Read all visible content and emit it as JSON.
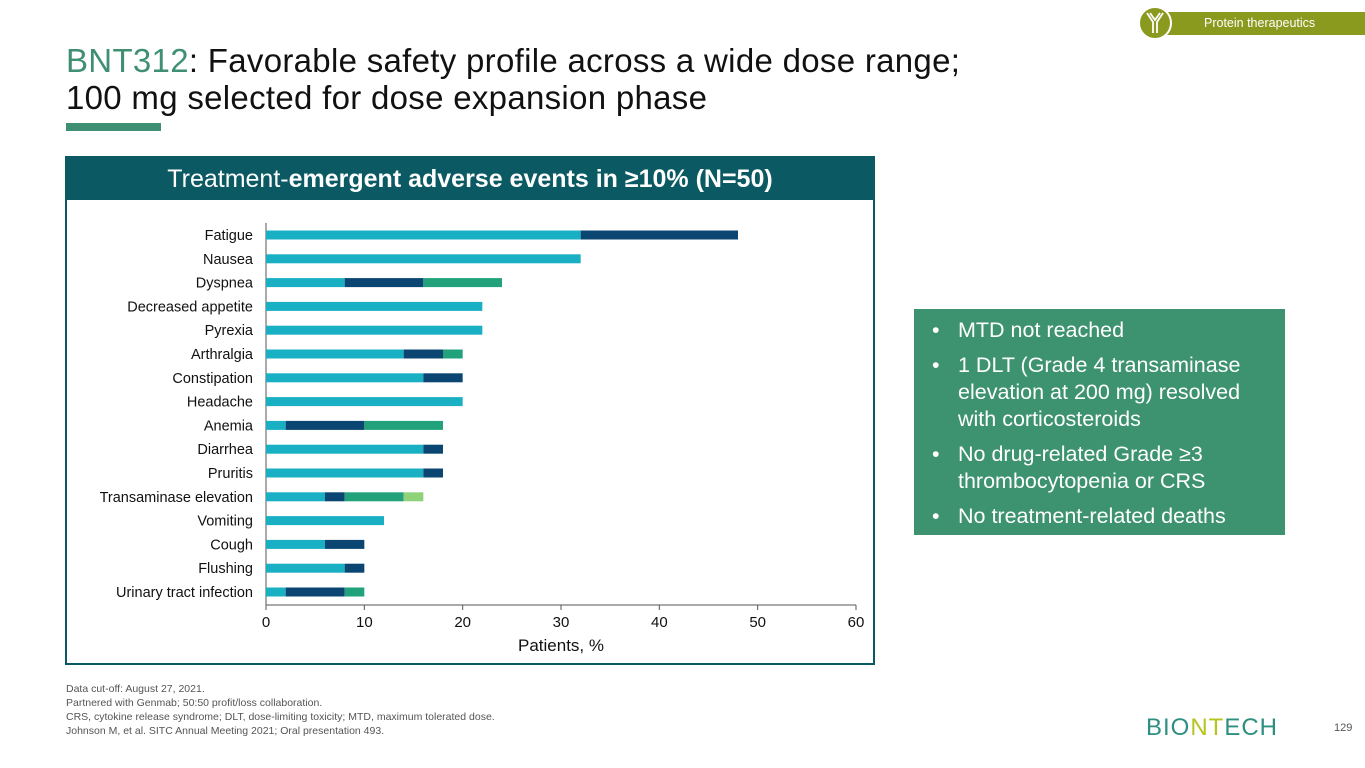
{
  "badge": {
    "icon": "antibody-icon",
    "label": "Protein therapeutics"
  },
  "title": {
    "accent": "BNT312",
    "rest_line1": ": Favorable safety profile across a wide dose range;",
    "line2": "100 mg selected for dose expansion phase"
  },
  "panel": {
    "header_regular": "Treatment-",
    "header_bold": "emergent adverse events in ≥10% (N=50)"
  },
  "chart_data": {
    "type": "bar",
    "orientation": "horizontal",
    "stacked": true,
    "title": "Treatment-emergent adverse events in ≥10% (N=50)",
    "xlabel": "Patients, %",
    "ylabel": "",
    "xlim": [
      0,
      60
    ],
    "xticks": [
      0,
      10,
      20,
      30,
      40,
      50,
      60
    ],
    "grid": false,
    "legend": "none",
    "categories": [
      "Fatigue",
      "Nausea",
      "Dyspnea",
      "Decreased appetite",
      "Pyrexia",
      "Arthralgia",
      "Constipation",
      "Headache",
      "Anemia",
      "Diarrhea",
      "Pruritis",
      "Transaminase  elevation",
      "Vomiting",
      "Cough",
      "Flushing",
      "Urinary  tract infection"
    ],
    "series": [
      {
        "name": "series-1",
        "color": "#1ab0c4",
        "values": [
          32,
          32,
          8,
          22,
          22,
          14,
          16,
          20,
          2,
          16,
          16,
          6,
          12,
          6,
          8,
          2
        ]
      },
      {
        "name": "series-2",
        "color": "#0b4673",
        "values": [
          16,
          0,
          8,
          0,
          0,
          4,
          4,
          0,
          8,
          2,
          2,
          2,
          0,
          4,
          2,
          6
        ]
      },
      {
        "name": "series-3",
        "color": "#22a27a",
        "values": [
          0,
          0,
          8,
          0,
          0,
          2,
          0,
          0,
          8,
          0,
          0,
          6,
          0,
          0,
          0,
          2
        ]
      },
      {
        "name": "series-4",
        "color": "#8fd27a",
        "values": [
          0,
          0,
          0,
          0,
          0,
          0,
          0,
          0,
          0,
          0,
          0,
          2,
          0,
          0,
          0,
          0
        ]
      }
    ]
  },
  "callout": {
    "bullets": [
      "MTD not reached",
      "1 DLT (Grade 4 transaminase elevation at 200 mg) resolved with corticosteroids",
      "No drug-related Grade ≥3 thrombocytopenia or CRS",
      "No treatment-related deaths"
    ]
  },
  "footnotes": [
    "Data cut-off: August 27, 2021.",
    "Partnered with Genmab; 50:50 profit/loss collaboration.",
    "CRS, cytokine release syndrome; DLT, dose-limiting toxicity; MTD, maximum tolerated dose.",
    "Johnson M, et al. SITC Annual Meeting 2021; Oral presentation 493."
  ],
  "logo": {
    "part1": "BIO",
    "part2": "NT",
    "part3": "ECH"
  },
  "page_number": "129"
}
